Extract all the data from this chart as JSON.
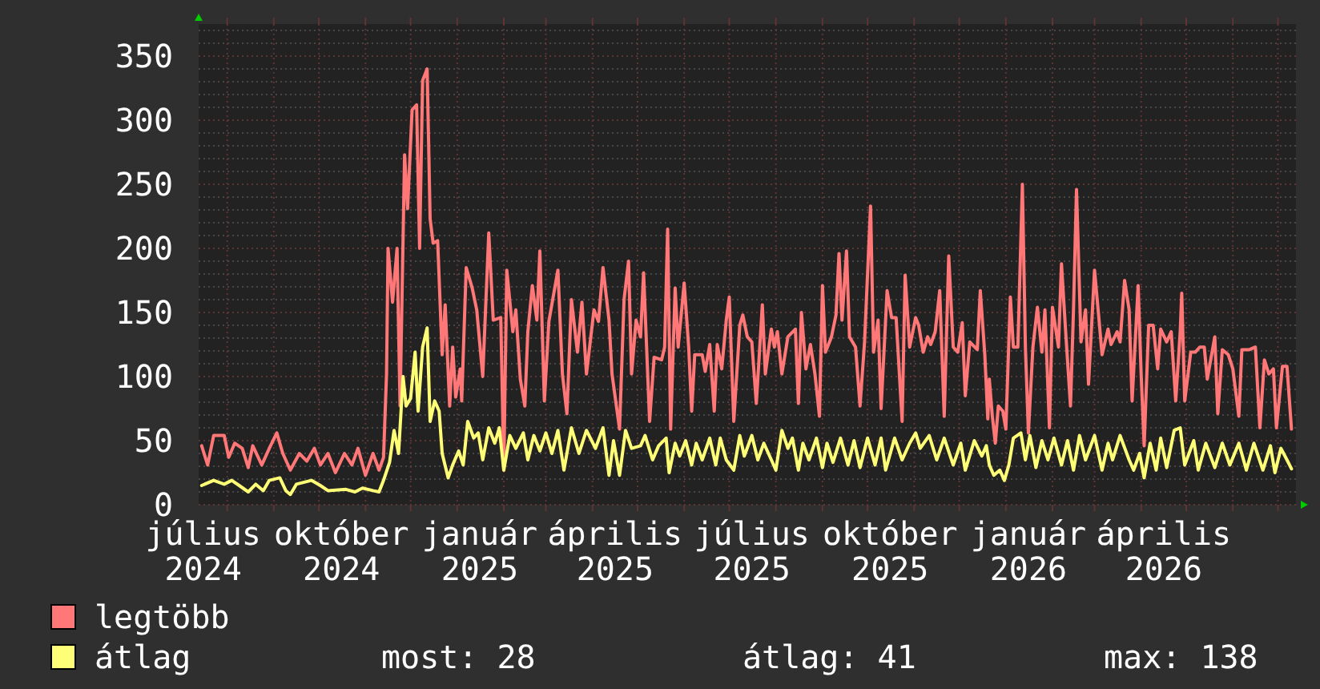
{
  "chart_data": {
    "type": "line",
    "xlim": [
      "2024-07-13",
      "2026-07-13"
    ],
    "xticks": [
      {
        "value": "2024-07-16",
        "label": "július 2024"
      },
      {
        "value": "2024-08-01",
        "label": null
      },
      {
        "value": "2024-09-01",
        "label": null
      },
      {
        "value": "2024-10-01",
        "label": null
      },
      {
        "value": "2024-10-16",
        "label": "október 2024"
      },
      {
        "value": "2024-11-01",
        "label": null
      },
      {
        "value": "2024-12-01",
        "label": null
      },
      {
        "value": "2025-01-01",
        "label": null
      },
      {
        "value": "2025-01-16",
        "label": "január 2025"
      },
      {
        "value": "2025-02-01",
        "label": null
      },
      {
        "value": "2025-03-01",
        "label": null
      },
      {
        "value": "2025-04-01",
        "label": null
      },
      {
        "value": "2025-04-16",
        "label": "április 2025"
      },
      {
        "value": "2025-05-01",
        "label": null
      },
      {
        "value": "2025-06-01",
        "label": null
      },
      {
        "value": "2025-07-01",
        "label": null
      },
      {
        "value": "2025-07-16",
        "label": "július 2025"
      },
      {
        "value": "2025-08-01",
        "label": null
      },
      {
        "value": "2025-09-01",
        "label": null
      },
      {
        "value": "2025-10-01",
        "label": null
      },
      {
        "value": "2025-10-16",
        "label": "október 2025"
      },
      {
        "value": "2025-11-01",
        "label": null
      },
      {
        "value": "2025-12-01",
        "label": null
      },
      {
        "value": "2026-01-01",
        "label": null
      },
      {
        "value": "2026-01-16",
        "label": "január 2026"
      },
      {
        "value": "2026-02-01",
        "label": null
      },
      {
        "value": "2026-03-01",
        "label": null
      },
      {
        "value": "2026-04-01",
        "label": null
      },
      {
        "value": "2026-04-16",
        "label": "április 2026"
      },
      {
        "value": "2026-05-01",
        "label": null
      },
      {
        "value": "2026-06-01",
        "label": null
      },
      {
        "value": "2026-07-01",
        "label": null
      }
    ],
    "ylim": [
      0,
      375
    ],
    "yticks": [
      0,
      50,
      100,
      150,
      200,
      250,
      300,
      350
    ],
    "grid": true,
    "legend": "bottom left",
    "annotations": [
      "most: 28",
      "átlag: 41",
      "max: 138"
    ],
    "series": [
      {
        "name": "legtöbb",
        "color": "#ff7777",
        "x": [
          "2024-07-15",
          "2024-07-19",
          "2024-07-23",
          "2024-07-30",
          "2024-08-02",
          "2024-08-06",
          "2024-08-11",
          "2024-08-15",
          "2024-08-18",
          "2024-08-24",
          "2024-08-29",
          "2024-09-03",
          "2024-09-07",
          "2024-09-12",
          "2024-09-18",
          "2024-09-23",
          "2024-09-28",
          "2024-10-02",
          "2024-10-07",
          "2024-10-12",
          "2024-10-18",
          "2024-10-23",
          "2024-10-27",
          "2024-11-01",
          "2024-11-06",
          "2024-11-10",
          "2024-11-13",
          "2024-11-15",
          "2024-11-16",
          "2024-11-19",
          "2024-11-22",
          "2024-11-24",
          "2024-11-27",
          "2024-11-29",
          "2024-12-02",
          "2024-12-05",
          "2024-12-07",
          "2024-12-09",
          "2024-12-12",
          "2024-12-14",
          "2024-12-16",
          "2024-12-19",
          "2024-12-22",
          "2024-12-24",
          "2024-12-27",
          "2024-12-29",
          "2024-12-31",
          "2025-01-03",
          "2025-01-04",
          "2025-01-07",
          "2025-01-11",
          "2025-01-14",
          "2025-01-18",
          "2025-01-22",
          "2025-01-25",
          "2025-01-30",
          "2025-02-01",
          "2025-02-03",
          "2025-02-07",
          "2025-02-09",
          "2025-02-12",
          "2025-02-15",
          "2025-02-17",
          "2025-02-20",
          "2025-02-23",
          "2025-02-25",
          "2025-02-28",
          "2025-03-03",
          "2025-03-09",
          "2025-03-12",
          "2025-03-15",
          "2025-03-18",
          "2025-03-22",
          "2025-03-25",
          "2025-03-28",
          "2025-04-02",
          "2025-04-05",
          "2025-04-08",
          "2025-04-12",
          "2025-04-14",
          "2025-04-19",
          "2025-04-22",
          "2025-04-25",
          "2025-04-27",
          "2025-04-30",
          "2025-05-03",
          "2025-05-05",
          "2025-05-09",
          "2025-05-12",
          "2025-05-17",
          "2025-05-19",
          "2025-05-21",
          "2025-05-23",
          "2025-05-26",
          "2025-05-28",
          "2025-06-01",
          "2025-06-04",
          "2025-06-06",
          "2025-06-08",
          "2025-06-13",
          "2025-06-15",
          "2025-06-18",
          "2025-06-21",
          "2025-06-23",
          "2025-06-26",
          "2025-06-29",
          "2025-07-01",
          "2025-07-04",
          "2025-07-08",
          "2025-07-10",
          "2025-07-13",
          "2025-07-16",
          "2025-07-19",
          "2025-07-23",
          "2025-07-25",
          "2025-07-29",
          "2025-07-31",
          "2025-08-02",
          "2025-08-05",
          "2025-08-09",
          "2025-08-14",
          "2025-08-16",
          "2025-08-18",
          "2025-08-21",
          "2025-08-24",
          "2025-08-27",
          "2025-08-30",
          "2025-09-01",
          "2025-09-03",
          "2025-09-07",
          "2025-09-10",
          "2025-09-12",
          "2025-09-14",
          "2025-09-17",
          "2025-09-19",
          "2025-09-23",
          "2025-09-26",
          "2025-09-29",
          "2025-10-03",
          "2025-10-05",
          "2025-10-08",
          "2025-10-10",
          "2025-10-14",
          "2025-10-17",
          "2025-10-20",
          "2025-10-24",
          "2025-10-26",
          "2025-10-29",
          "2025-11-02",
          "2025-11-04",
          "2025-11-07",
          "2025-11-10",
          "2025-11-12",
          "2025-11-15",
          "2025-11-18",
          "2025-11-21",
          "2025-11-24",
          "2025-11-27",
          "2025-11-30",
          "2025-12-03",
          "2025-12-05",
          "2025-12-08",
          "2025-12-13",
          "2025-12-15",
          "2025-12-18",
          "2025-12-20",
          "2025-12-21",
          "2025-12-23",
          "2025-12-25",
          "2025-12-27",
          "2025-12-30",
          "2026-01-01",
          "2026-01-04",
          "2026-01-06",
          "2026-01-09",
          "2026-01-12",
          "2026-01-14",
          "2026-01-16",
          "2026-01-19",
          "2026-01-22",
          "2026-01-25",
          "2026-01-27",
          "2026-01-30",
          "2026-02-01",
          "2026-02-05",
          "2026-02-07",
          "2026-02-10",
          "2026-02-13",
          "2026-02-15",
          "2026-02-17",
          "2026-02-20",
          "2026-02-23",
          "2026-02-25",
          "2026-03-01",
          "2026-03-04",
          "2026-03-06",
          "2026-03-10",
          "2026-03-12",
          "2026-03-16",
          "2026-03-18",
          "2026-03-21",
          "2026-03-24",
          "2026-03-26",
          "2026-03-30",
          "2026-04-01",
          "2026-04-03",
          "2026-04-06",
          "2026-04-09",
          "2026-04-12",
          "2026-04-14",
          "2026-04-18",
          "2026-04-21",
          "2026-04-24",
          "2026-04-27",
          "2026-04-28",
          "2026-04-30",
          "2026-05-04",
          "2026-05-07",
          "2026-05-10",
          "2026-05-13",
          "2026-05-15",
          "2026-05-20",
          "2026-05-22",
          "2026-05-25",
          "2026-05-29",
          "2026-06-01",
          "2026-06-05",
          "2026-06-07",
          "2026-06-12",
          "2026-06-16",
          "2026-06-19",
          "2026-06-22",
          "2026-06-25",
          "2026-06-28",
          "2026-06-30",
          "2026-07-04",
          "2026-07-07",
          "2026-07-08",
          "2026-07-10"
        ],
        "values": [
          46,
          31,
          54,
          54,
          37,
          48,
          44,
          29,
          46,
          31,
          44,
          56,
          40,
          27,
          40,
          34,
          44,
          31,
          40,
          25,
          40,
          31,
          44,
          23,
          40,
          27,
          37,
          102,
          200,
          158,
          200,
          77,
          273,
          231,
          308,
          312,
          200,
          331,
          340,
          223,
          204,
          206,
          117,
          156,
          77,
          123,
          84,
          106,
          81,
          185,
          169,
          152,
          100,
          212,
          144,
          146,
          27,
          183,
          135,
          152,
          98,
          77,
          135,
          171,
          144,
          198,
          81,
          143,
          183,
          102,
          71,
          160,
          119,
          158,
          102,
          152,
          143,
          185,
          144,
          102,
          59,
          160,
          190,
          102,
          144,
          131,
          181,
          65,
          115,
          113,
          123,
          215,
          59,
          169,
          123,
          173,
          123,
          73,
          117,
          117,
          104,
          125,
          73,
          125,
          106,
          144,
          162,
          65,
          140,
          148,
          131,
          127,
          79,
          156,
          102,
          137,
          123,
          135,
          102,
          131,
          137,
          79,
          150,
          106,
          125,
          102,
          69,
          171,
          119,
          131,
          148,
          196,
          144,
          198,
          131,
          123,
          77,
          127,
          233,
          119,
          144,
          75,
          167,
          146,
          146,
          65,
          179,
          123,
          146,
          140,
          119,
          131,
          125,
          135,
          167,
          69,
          194,
          123,
          119,
          142,
          85,
          127,
          121,
          167,
          117,
          67,
          98,
          69,
          48,
          77,
          73,
          59,
          162,
          123,
          123,
          250,
          123,
          56,
          123,
          154,
          119,
          152,
          60,
          154,
          123,
          188,
          131,
          77,
          152,
          246,
          127,
          152,
          94,
          183,
          144,
          117,
          137,
          125,
          135,
          127,
          175,
          152,
          81,
          171,
          102,
          46,
          140,
          140,
          106,
          137,
          127,
          135,
          81,
          135,
          165,
          81,
          119,
          119,
          123,
          123,
          98,
          131,
          71,
          121,
          117,
          106,
          69,
          121,
          121,
          123,
          60,
          113,
          102,
          106,
          60,
          108,
          108,
          92,
          59
        ]
      },
      {
        "name": "átlag",
        "color": "#ffff77",
        "x": [
          "2024-07-15",
          "2024-07-23",
          "2024-07-30",
          "2024-08-04",
          "2024-08-09",
          "2024-08-15",
          "2024-08-20",
          "2024-08-25",
          "2024-08-29",
          "2024-09-05",
          "2024-09-09",
          "2024-09-12",
          "2024-09-16",
          "2024-09-26",
          "2024-10-02",
          "2024-10-07",
          "2024-10-19",
          "2024-10-25",
          "2024-10-30",
          "2024-11-06",
          "2024-11-10",
          "2024-11-13",
          "2024-11-17",
          "2024-11-20",
          "2024-11-23",
          "2024-11-26",
          "2024-11-28",
          "2024-12-01",
          "2024-12-04",
          "2024-12-06",
          "2024-12-09",
          "2024-12-12",
          "2024-12-14",
          "2024-12-17",
          "2024-12-20",
          "2024-12-22",
          "2024-12-26",
          "2024-12-29",
          "2025-01-02",
          "2025-01-05",
          "2025-01-08",
          "2025-01-12",
          "2025-01-15",
          "2025-01-18",
          "2025-01-22",
          "2025-01-26",
          "2025-01-29",
          "2025-02-01",
          "2025-02-05",
          "2025-02-09",
          "2025-02-14",
          "2025-02-17",
          "2025-02-21",
          "2025-02-25",
          "2025-03-01",
          "2025-03-05",
          "2025-03-09",
          "2025-03-13",
          "2025-03-18",
          "2025-03-23",
          "2025-03-28",
          "2025-04-03",
          "2025-04-08",
          "2025-04-12",
          "2025-04-15",
          "2025-04-19",
          "2025-04-23",
          "2025-04-27",
          "2025-05-03",
          "2025-05-06",
          "2025-05-11",
          "2025-05-15",
          "2025-05-20",
          "2025-05-22",
          "2025-05-26",
          "2025-05-29",
          "2025-06-02",
          "2025-06-06",
          "2025-06-09",
          "2025-06-13",
          "2025-06-18",
          "2025-06-22",
          "2025-06-25",
          "2025-06-29",
          "2025-07-04",
          "2025-07-08",
          "2025-07-11",
          "2025-07-16",
          "2025-07-20",
          "2025-07-24",
          "2025-07-29",
          "2025-08-01",
          "2025-08-05",
          "2025-08-09",
          "2025-08-12",
          "2025-08-16",
          "2025-08-19",
          "2025-08-23",
          "2025-08-28",
          "2025-09-01",
          "2025-09-04",
          "2025-09-08",
          "2025-09-13",
          "2025-09-18",
          "2025-09-22",
          "2025-09-26",
          "2025-10-01",
          "2025-10-06",
          "2025-10-10",
          "2025-10-13",
          "2025-10-19",
          "2025-10-24",
          "2025-10-29",
          "2025-11-02",
          "2025-11-05",
          "2025-11-11",
          "2025-11-16",
          "2025-11-21",
          "2025-11-27",
          "2025-12-02",
          "2025-12-05",
          "2025-12-11",
          "2025-12-16",
          "2025-12-19",
          "2025-12-21",
          "2025-12-24",
          "2025-12-28",
          "2025-12-31",
          "2026-01-03",
          "2026-01-06",
          "2026-01-11",
          "2026-01-14",
          "2026-01-17",
          "2026-01-21",
          "2026-01-25",
          "2026-01-29",
          "2026-02-02",
          "2026-02-07",
          "2026-02-11",
          "2026-02-15",
          "2026-02-19",
          "2026-02-23",
          "2026-03-01",
          "2026-03-06",
          "2026-03-10",
          "2026-03-13",
          "2026-03-18",
          "2026-03-24",
          "2026-03-27",
          "2026-03-31",
          "2026-04-03",
          "2026-04-07",
          "2026-04-11",
          "2026-04-14",
          "2026-04-18",
          "2026-04-23",
          "2026-04-27",
          "2026-04-30",
          "2026-05-06",
          "2026-05-09",
          "2026-05-14",
          "2026-05-20",
          "2026-05-25",
          "2026-05-30",
          "2026-06-05",
          "2026-06-10",
          "2026-06-15",
          "2026-06-21",
          "2026-06-26",
          "2026-06-29",
          "2026-07-03",
          "2026-07-07",
          "2026-07-10"
        ],
        "values": [
          15,
          19,
          16,
          19,
          15,
          10,
          16,
          11,
          19,
          21,
          11,
          8,
          16,
          19,
          15,
          11,
          12,
          10,
          13,
          11,
          10,
          19,
          33,
          58,
          40,
          100,
          77,
          83,
          119,
          73,
          123,
          138,
          65,
          81,
          73,
          40,
          21,
          31,
          42,
          31,
          65,
          52,
          56,
          35,
          60,
          48,
          60,
          27,
          54,
          44,
          56,
          35,
          54,
          42,
          56,
          40,
          58,
          27,
          60,
          40,
          58,
          44,
          60,
          23,
          50,
          23,
          58,
          44,
          46,
          54,
          35,
          46,
          52,
          25,
          48,
          38,
          50,
          31,
          48,
          35,
          52,
          31,
          52,
          35,
          27,
          54,
          38,
          54,
          35,
          48,
          35,
          27,
          58,
          44,
          52,
          27,
          48,
          35,
          52,
          29,
          48,
          33,
          52,
          31,
          50,
          29,
          52,
          31,
          52,
          27,
          52,
          35,
          48,
          56,
          44,
          54,
          35,
          52,
          31,
          48,
          27,
          50,
          38,
          46,
          31,
          23,
          27,
          19,
          31,
          52,
          56,
          35,
          54,
          29,
          50,
          35,
          52,
          31,
          50,
          27,
          54,
          35,
          54,
          27,
          48,
          35,
          54,
          35,
          27,
          40,
          21,
          48,
          27,
          52,
          29,
          58,
          60,
          31,
          50,
          27,
          48,
          29,
          48,
          31,
          48,
          27,
          48,
          27,
          46,
          25,
          44,
          35,
          28
        ]
      }
    ]
  }
}
